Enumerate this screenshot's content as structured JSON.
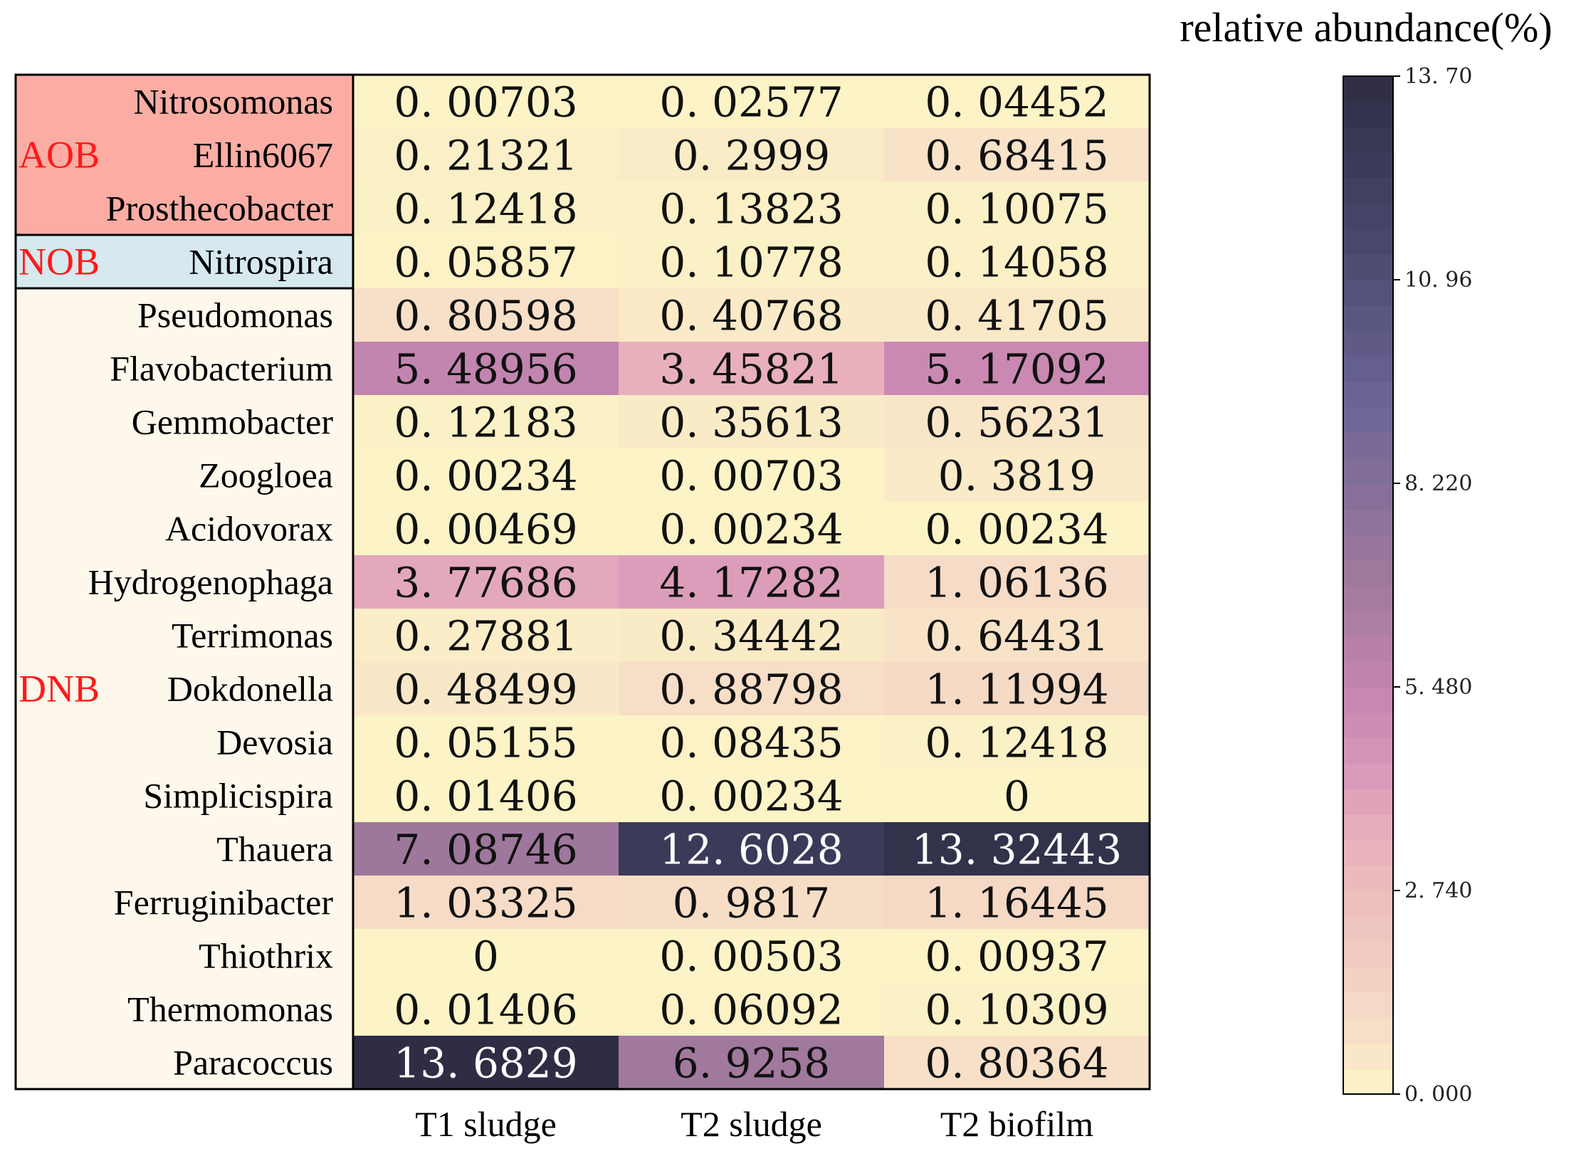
{
  "chart_data": {
    "type": "heatmap",
    "columns": [
      "T1 sludge",
      "T2 sludge",
      "T2 biofilm"
    ],
    "rows": [
      {
        "genus": "Nitrosomonas",
        "group": "AOB",
        "labels": [
          "0. 00703",
          "0. 02577",
          "0. 04452"
        ],
        "values": [
          0.00703,
          0.02577,
          0.04452
        ]
      },
      {
        "genus": "Ellin6067",
        "group": "AOB",
        "labels": [
          "0. 21321",
          "0. 2999",
          "0. 68415"
        ],
        "values": [
          0.21321,
          0.2999,
          0.68415
        ]
      },
      {
        "genus": "Prosthecobacter",
        "group": "AOB",
        "labels": [
          "0. 12418",
          "0. 13823",
          "0. 10075"
        ],
        "values": [
          0.12418,
          0.13823,
          0.10075
        ]
      },
      {
        "genus": "Nitrospira",
        "group": "NOB",
        "labels": [
          "0. 05857",
          "0. 10778",
          "0. 14058"
        ],
        "values": [
          0.05857,
          0.10778,
          0.14058
        ]
      },
      {
        "genus": "Pseudomonas",
        "group": "DNB",
        "labels": [
          "0. 80598",
          "0. 40768",
          "0. 41705"
        ],
        "values": [
          0.80598,
          0.40768,
          0.41705
        ]
      },
      {
        "genus": "Flavobacterium",
        "group": "DNB",
        "labels": [
          "5. 48956",
          "3. 45821",
          "5. 17092"
        ],
        "values": [
          5.48956,
          3.45821,
          5.17092
        ]
      },
      {
        "genus": "Gemmobacter",
        "group": "DNB",
        "labels": [
          "0. 12183",
          "0. 35613",
          "0. 56231"
        ],
        "values": [
          0.12183,
          0.35613,
          0.56231
        ]
      },
      {
        "genus": "Zoogloea",
        "group": "DNB",
        "labels": [
          "0. 00234",
          "0. 00703",
          "0. 3819"
        ],
        "values": [
          0.00234,
          0.00703,
          0.3819
        ]
      },
      {
        "genus": "Acidovorax",
        "group": "DNB",
        "labels": [
          "0. 00469",
          "0. 00234",
          "0. 00234"
        ],
        "values": [
          0.00469,
          0.00234,
          0.00234
        ]
      },
      {
        "genus": "Hydrogenophaga",
        "group": "DNB",
        "labels": [
          "3. 77686",
          "4. 17282",
          "1. 06136"
        ],
        "values": [
          3.77686,
          4.17282,
          1.06136
        ]
      },
      {
        "genus": "Terrimonas",
        "group": "DNB",
        "labels": [
          "0. 27881",
          "0. 34442",
          "0. 64431"
        ],
        "values": [
          0.27881,
          0.34442,
          0.64431
        ]
      },
      {
        "genus": "Dokdonella",
        "group": "DNB",
        "labels": [
          "0. 48499",
          "0. 88798",
          "1. 11994"
        ],
        "values": [
          0.48499,
          0.88798,
          1.11994
        ]
      },
      {
        "genus": "Devosia",
        "group": "DNB",
        "labels": [
          "0. 05155",
          "0. 08435",
          "0. 12418"
        ],
        "values": [
          0.05155,
          0.08435,
          0.12418
        ]
      },
      {
        "genus": "Simplicispira",
        "group": "DNB",
        "labels": [
          "0. 01406",
          "0. 00234",
          "0"
        ],
        "values": [
          0.01406,
          0.00234,
          0
        ]
      },
      {
        "genus": "Thauera",
        "group": "DNB",
        "labels": [
          "7. 08746",
          "12. 6028",
          "13. 32443"
        ],
        "values": [
          7.08746,
          12.6028,
          13.32443
        ]
      },
      {
        "genus": "Ferruginibacter",
        "group": "DNB",
        "labels": [
          "1. 03325",
          "0. 9817",
          "1. 16445"
        ],
        "values": [
          1.03325,
          0.9817,
          1.16445
        ]
      },
      {
        "genus": "Thiothrix",
        "group": "DNB",
        "labels": [
          "0",
          "0. 00503",
          "0. 00937"
        ],
        "values": [
          0,
          0.00503,
          0.00937
        ]
      },
      {
        "genus": "Thermomonas",
        "group": "DNB",
        "labels": [
          "0. 01406",
          "0. 06092",
          "0. 10309"
        ],
        "values": [
          0.01406,
          0.06092,
          0.10309
        ]
      },
      {
        "genus": "Paracoccus",
        "group": "DNB",
        "labels": [
          "13. 6829",
          "6. 9258",
          "0. 80364"
        ],
        "values": [
          13.6829,
          6.9258,
          0.80364
        ]
      }
    ],
    "groups": [
      {
        "name": "AOB",
        "first_row": 0,
        "last_row": 2,
        "color": "#fbada3"
      },
      {
        "name": "NOB",
        "first_row": 3,
        "last_row": 3,
        "color": "#d5e9ef"
      },
      {
        "name": "DNB",
        "first_row": 4,
        "last_row": 18,
        "color": "#fdf7ec"
      }
    ],
    "colorbar": {
      "title": "relative abundance(%)",
      "min": 0,
      "max": 13.7,
      "ticks": [
        "13. 70",
        "10. 96",
        "8. 220",
        "5. 480",
        "2. 740",
        "0. 000"
      ],
      "tick_values": [
        13.7,
        10.96,
        8.22,
        5.48,
        2.74,
        0
      ],
      "stops": [
        {
          "value": 0,
          "color": "#fcf4c6"
        },
        {
          "value": 0.7,
          "color": "#f8e2c8"
        },
        {
          "value": 2.0,
          "color": "#f0c9c0"
        },
        {
          "value": 3.4,
          "color": "#e9b2bb"
        },
        {
          "value": 4.2,
          "color": "#dc9cba"
        },
        {
          "value": 5.2,
          "color": "#c988b3"
        },
        {
          "value": 6.9,
          "color": "#a2799d"
        },
        {
          "value": 9.3,
          "color": "#6c6595"
        },
        {
          "value": 11.5,
          "color": "#48486d"
        },
        {
          "value": 13.7,
          "color": "#2e2d44"
        }
      ]
    }
  }
}
